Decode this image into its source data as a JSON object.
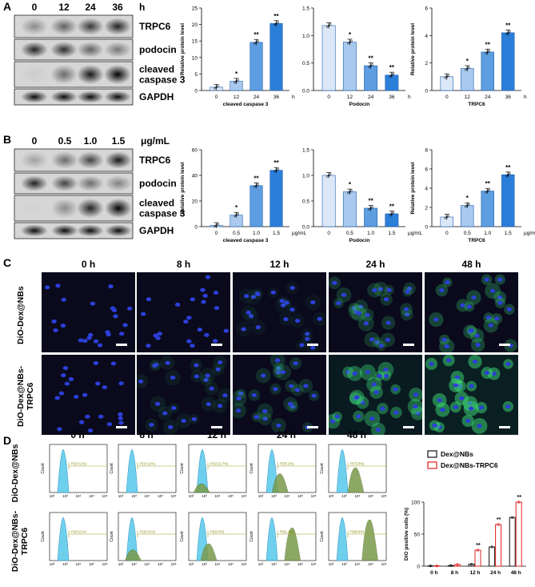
{
  "panels": {
    "A": "A",
    "B": "B",
    "C": "C",
    "D": "D"
  },
  "blots": {
    "A": {
      "lanes": [
        "0",
        "12",
        "24",
        "36"
      ],
      "unit": "h",
      "bands": [
        "TRPC6",
        "podocin",
        "cleaved\ncaspase 3",
        "GAPDH"
      ]
    },
    "B": {
      "lanes": [
        "0",
        "0.5",
        "1.0",
        "1.5"
      ],
      "unit": "μg/mL",
      "bands": [
        "TRPC6",
        "podocin",
        "cleaved\ncaspase 3",
        "GAPDH"
      ]
    }
  },
  "chart_data": [
    {
      "type": "bar",
      "panel": "A",
      "ylabel": "Relative protein level",
      "xlabel": "cleaved caspase 3",
      "unit": "h",
      "categories": [
        "0",
        "12",
        "24",
        "36"
      ],
      "values": [
        1.0,
        2.8,
        14.6,
        20.3
      ],
      "ylim": [
        0,
        25
      ],
      "yticks": [
        "0",
        "5",
        "10",
        "15",
        "20",
        "25"
      ],
      "sig": [
        "",
        "*",
        "**",
        "**"
      ]
    },
    {
      "type": "bar",
      "panel": "A",
      "ylabel": "",
      "xlabel": "Podocin",
      "unit": "h",
      "categories": [
        "0",
        "12",
        "24",
        "36"
      ],
      "values": [
        1.18,
        0.88,
        0.45,
        0.28
      ],
      "ylim": [
        0,
        1.5
      ],
      "yticks": [
        "0.0",
        "0.5",
        "1.0",
        "1.5"
      ],
      "sig": [
        "",
        "*",
        "**",
        "**"
      ]
    },
    {
      "type": "bar",
      "panel": "A",
      "ylabel": "Relative protein level",
      "xlabel": "TRPC6",
      "unit": "h",
      "categories": [
        "0",
        "12",
        "24",
        "36"
      ],
      "values": [
        1.0,
        1.6,
        2.8,
        4.2
      ],
      "ylim": [
        0,
        6
      ],
      "yticks": [
        "0",
        "2",
        "4",
        "6"
      ],
      "sig": [
        "",
        "*",
        "**",
        "**"
      ]
    },
    {
      "type": "bar",
      "panel": "B",
      "ylabel": "Relative protein level",
      "xlabel": "cleaved caspase 3",
      "unit": "μg/mL",
      "categories": [
        "0",
        "0.5",
        "1.0",
        "1.5"
      ],
      "values": [
        1.0,
        9.0,
        32.0,
        44.0
      ],
      "ylim": [
        0,
        60
      ],
      "yticks": [
        "0",
        "20",
        "40",
        "60"
      ],
      "sig": [
        "",
        "*",
        "**",
        "**"
      ]
    },
    {
      "type": "bar",
      "panel": "B",
      "ylabel": "",
      "xlabel": "Podocin",
      "unit": "μg/mL",
      "categories": [
        "0",
        "0.5",
        "1.0",
        "1.5"
      ],
      "values": [
        1.0,
        0.68,
        0.36,
        0.25
      ],
      "ylim": [
        0,
        1.5
      ],
      "yticks": [
        "0.0",
        "0.5",
        "1.0",
        "1.5"
      ],
      "sig": [
        "",
        "*",
        "**",
        "**"
      ]
    },
    {
      "type": "bar",
      "panel": "B",
      "ylabel": "Relative protein level",
      "xlabel": "TRPC6",
      "unit": "μg/mL",
      "categories": [
        "0",
        "0.5",
        "1.0",
        "1.5"
      ],
      "values": [
        1.0,
        2.2,
        3.7,
        5.4
      ],
      "ylim": [
        0,
        8
      ],
      "yticks": [
        "0",
        "2",
        "4",
        "6",
        "8"
      ],
      "sig": [
        "",
        "*",
        "**",
        "**"
      ]
    },
    {
      "type": "bar",
      "panel": "D",
      "ylabel": "DiO positive cells (%)",
      "xlabel": "",
      "categories": [
        "0 h",
        "8 h",
        "12 h",
        "24 h",
        "48 h"
      ],
      "series": [
        {
          "name": "Dex@NBs",
          "color": "#111111",
          "values": [
            0.5,
            1.0,
            3.0,
            30.0,
            76.0
          ]
        },
        {
          "name": "Dex@NBs-TRPC6",
          "color": "#e02020",
          "values": [
            0.5,
            2.5,
            25.0,
            65.0,
            100.0
          ]
        }
      ],
      "ylim": [
        0,
        100
      ],
      "yticks": [
        "0",
        "50",
        "100"
      ],
      "sig": [
        "",
        "",
        "**",
        "**",
        "**"
      ]
    }
  ],
  "micro": {
    "times": [
      "0 h",
      "8 h",
      "12 h",
      "24 h",
      "48 h"
    ],
    "rows": [
      "DiO-Dex@NBs",
      "DiO-Dex@NBs-\nTRPC6"
    ],
    "green": [
      [
        0,
        0.05,
        0.1,
        0.35,
        0.5
      ],
      [
        0,
        0.15,
        0.3,
        0.7,
        0.9
      ]
    ]
  },
  "flow": {
    "times": [
      "0 h",
      "8 h",
      "12 h",
      "24 h",
      "48 h"
    ],
    "rows": [
      "DiO-Dex@NBs",
      "DiO-Dex@NBs-\nTRPC6"
    ],
    "gate_labels": [
      [
        "P(10 (1%)",
        "P(10 (1%)",
        "P(10 (2.7%)",
        "P(35.2%)",
        "P(73.8%)"
      ],
      [
        "P(10 (1%)",
        "P(10 (1%)",
        "P(25.0%)",
        "P(61.4%)",
        "P(98.9%)"
      ]
    ],
    "ylabel": "Count",
    "xticks": [
      "10²",
      "10³",
      "10⁴",
      "10⁵",
      "10⁶"
    ]
  }
}
